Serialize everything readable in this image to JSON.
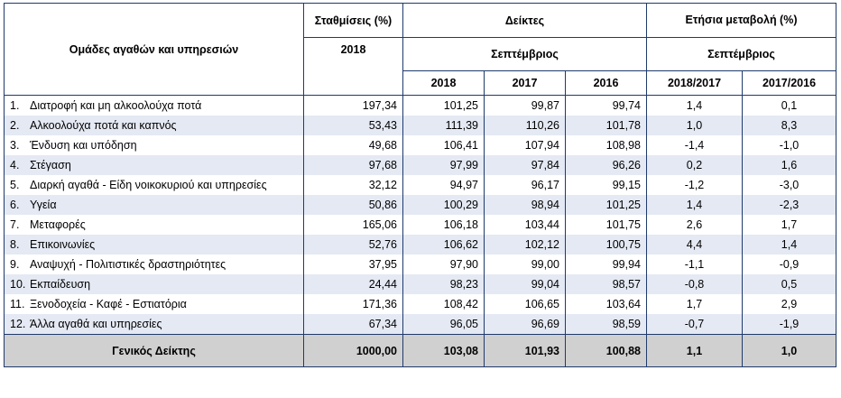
{
  "header": {
    "groups_label": "Ομάδες αγαθών και υπηρεσιών",
    "weights_label": "Σταθμίσεις (%)",
    "weights_year": "2018",
    "indices_label": "Δείκτες",
    "indices_month": "Σεπτέμβριος",
    "annual_change_label": "Ετήσια μεταβολή (%)",
    "annual_change_month": "Σεπτέμβριος",
    "years": [
      "2018",
      "2017",
      "2016"
    ],
    "changes": [
      "2018/2017",
      "2017/2016"
    ]
  },
  "rows": [
    {
      "no": "1.",
      "name": "Διατροφή και μη αλκοολούχα ποτά",
      "weight": "197,34",
      "i2018": "101,25",
      "i2017": "99,87",
      "i2016": "99,74",
      "c1817": "1,4",
      "c1716": "0,1"
    },
    {
      "no": "2.",
      "name": "Αλκοολούχα ποτά και καπνός",
      "weight": "53,43",
      "i2018": "111,39",
      "i2017": "110,26",
      "i2016": "101,78",
      "c1817": "1,0",
      "c1716": "8,3"
    },
    {
      "no": "3.",
      "name": "Ένδυση και υπόδηση",
      "weight": "49,68",
      "i2018": "106,41",
      "i2017": "107,94",
      "i2016": "108,98",
      "c1817": "-1,4",
      "c1716": "-1,0"
    },
    {
      "no": "4.",
      "name": "Στέγαση",
      "weight": "97,68",
      "i2018": "97,99",
      "i2017": "97,84",
      "i2016": "96,26",
      "c1817": "0,2",
      "c1716": "1,6"
    },
    {
      "no": "5.",
      "name": "Διαρκή αγαθά - Είδη  νοικοκυριού και υπηρεσίες",
      "weight": "32,12",
      "i2018": "94,97",
      "i2017": "96,17",
      "i2016": "99,15",
      "c1817": "-1,2",
      "c1716": "-3,0"
    },
    {
      "no": "6.",
      "name": "Υγεία",
      "weight": "50,86",
      "i2018": "100,29",
      "i2017": "98,94",
      "i2016": "101,25",
      "c1817": "1,4",
      "c1716": "-2,3"
    },
    {
      "no": "7.",
      "name": "Μεταφορές",
      "weight": "165,06",
      "i2018": "106,18",
      "i2017": "103,44",
      "i2016": "101,75",
      "c1817": "2,6",
      "c1716": "1,7"
    },
    {
      "no": "8.",
      "name": "Επικοινωνίες",
      "weight": "52,76",
      "i2018": "106,62",
      "i2017": "102,12",
      "i2016": "100,75",
      "c1817": "4,4",
      "c1716": "1,4"
    },
    {
      "no": "9.",
      "name": "Αναψυχή - Πολιτιστικές δραστηριότητες",
      "weight": "37,95",
      "i2018": "97,90",
      "i2017": "99,00",
      "i2016": "99,94",
      "c1817": "-1,1",
      "c1716": "-0,9"
    },
    {
      "no": "10.",
      "name": "Εκπαίδευση",
      "weight": "24,44",
      "i2018": "98,23",
      "i2017": "99,04",
      "i2016": "98,57",
      "c1817": "-0,8",
      "c1716": "0,5"
    },
    {
      "no": "11.",
      "name": "Ξενοδοχεία - Καφέ - Εστιατόρια",
      "weight": "171,36",
      "i2018": "108,42",
      "i2017": "106,65",
      "i2016": "103,64",
      "c1817": "1,7",
      "c1716": "2,9"
    },
    {
      "no": "12.",
      "name": "Άλλα αγαθά και υπηρεσίες",
      "weight": "67,34",
      "i2018": "96,05",
      "i2017": "96,69",
      "i2016": "98,59",
      "c1817": "-0,7",
      "c1716": "-1,9"
    }
  ],
  "total": {
    "name": "Γενικός Δείκτης",
    "weight": "1000,00",
    "i2018": "103,08",
    "i2017": "101,93",
    "i2016": "100,88",
    "c1817": "1,1",
    "c1716": "1,0"
  },
  "colors": {
    "border": "#1f3a6b",
    "row_alt": "#e4e9f3",
    "total_bg": "#d0d0d0"
  }
}
